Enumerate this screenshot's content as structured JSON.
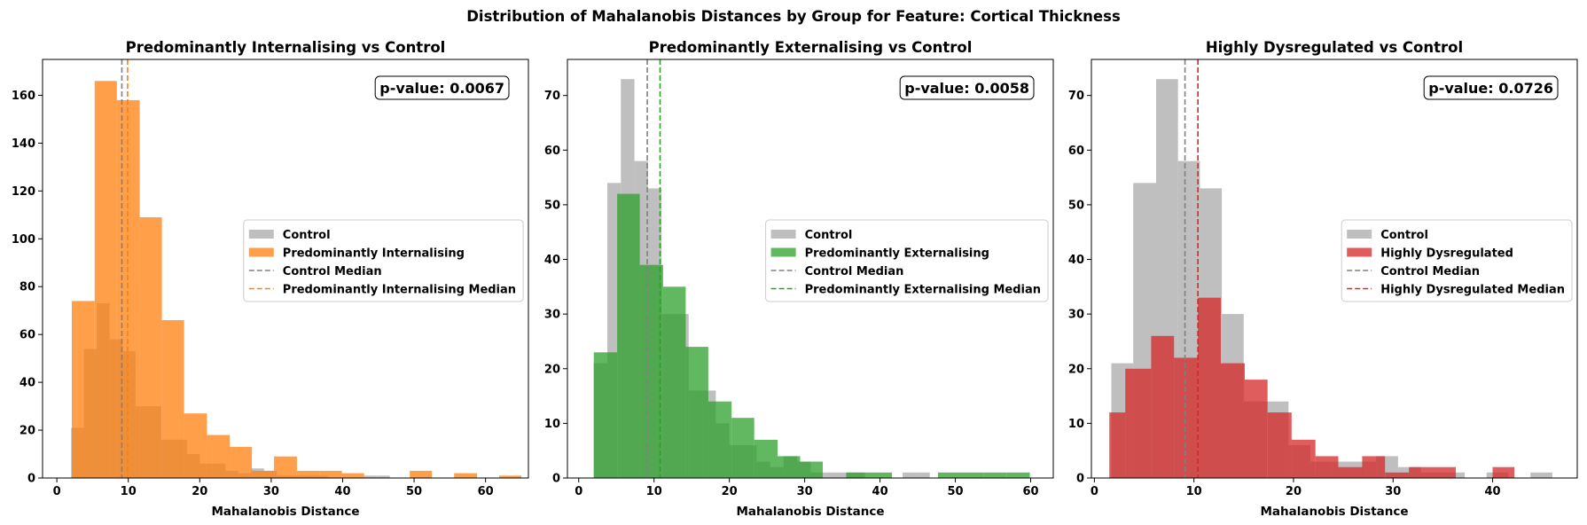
{
  "figure": {
    "suptitle": "Distribution of Mahalanobis Distances by Group for Feature: Cortical Thickness"
  },
  "chart_data": [
    {
      "type": "histogram",
      "title": "Predominantly Internalising vs Control",
      "xlabel": "Mahalanobis Distance",
      "ylabel": "",
      "xlim": [
        -2,
        66
      ],
      "ylim": [
        0,
        175
      ],
      "xticks": [
        0,
        10,
        20,
        30,
        40,
        50,
        60
      ],
      "yticks": [
        0,
        20,
        40,
        60,
        80,
        100,
        120,
        140,
        160
      ],
      "annotation": "p-value: 0.0067",
      "legend_position": "center-right",
      "accent_color": "#ff7f0e",
      "control_color": "#a9a9a9",
      "series": [
        {
          "name": "Control",
          "color": "#a9a9a9",
          "bins": [
            {
              "x0": 2.0,
              "x1": 3.8,
              "y": 21
            },
            {
              "x0": 3.8,
              "x1": 5.6,
              "y": 54
            },
            {
              "x0": 5.6,
              "x1": 7.4,
              "y": 73
            },
            {
              "x0": 7.4,
              "x1": 9.2,
              "y": 58
            },
            {
              "x0": 9.2,
              "x1": 11.0,
              "y": 53
            },
            {
              "x0": 11.0,
              "x1": 12.8,
              "y": 30
            },
            {
              "x0": 12.8,
              "x1": 14.6,
              "y": 30
            },
            {
              "x0": 14.6,
              "x1": 16.4,
              "y": 16
            },
            {
              "x0": 16.4,
              "x1": 18.2,
              "y": 16
            },
            {
              "x0": 18.2,
              "x1": 20.0,
              "y": 10
            },
            {
              "x0": 20.0,
              "x1": 21.8,
              "y": 6
            },
            {
              "x0": 21.8,
              "x1": 23.6,
              "y": 6
            },
            {
              "x0": 23.6,
              "x1": 25.4,
              "y": 3
            },
            {
              "x0": 25.4,
              "x1": 27.2,
              "y": 2
            },
            {
              "x0": 27.2,
              "x1": 29.0,
              "y": 4
            },
            {
              "x0": 29.0,
              "x1": 30.8,
              "y": 3
            },
            {
              "x0": 30.8,
              "x1": 32.6,
              "y": 1
            },
            {
              "x0": 32.6,
              "x1": 34.4,
              "y": 1
            },
            {
              "x0": 34.4,
              "x1": 36.2,
              "y": 1
            },
            {
              "x0": 36.2,
              "x1": 38.0,
              "y": 1
            },
            {
              "x0": 43.0,
              "x1": 44.8,
              "y": 1
            },
            {
              "x0": 44.8,
              "x1": 46.6,
              "y": 1
            }
          ]
        },
        {
          "name": "Predominantly Internalising",
          "color": "#ff7f0e",
          "bins": [
            {
              "x0": 2.1,
              "x1": 5.3,
              "y": 74
            },
            {
              "x0": 5.3,
              "x1": 8.4,
              "y": 166
            },
            {
              "x0": 8.4,
              "x1": 11.6,
              "y": 158
            },
            {
              "x0": 11.6,
              "x1": 14.7,
              "y": 109
            },
            {
              "x0": 14.7,
              "x1": 17.8,
              "y": 66
            },
            {
              "x0": 17.8,
              "x1": 21.0,
              "y": 27
            },
            {
              "x0": 21.0,
              "x1": 24.2,
              "y": 18
            },
            {
              "x0": 24.2,
              "x1": 27.3,
              "y": 13
            },
            {
              "x0": 27.3,
              "x1": 30.4,
              "y": 3
            },
            {
              "x0": 30.4,
              "x1": 33.6,
              "y": 9
            },
            {
              "x0": 33.6,
              "x1": 36.8,
              "y": 3
            },
            {
              "x0": 36.8,
              "x1": 39.9,
              "y": 3
            },
            {
              "x0": 39.9,
              "x1": 43.0,
              "y": 2
            },
            {
              "x0": 49.4,
              "x1": 52.5,
              "y": 3
            },
            {
              "x0": 55.6,
              "x1": 58.8,
              "y": 2
            },
            {
              "x0": 61.9,
              "x1": 65.0,
              "y": 1
            }
          ]
        }
      ],
      "medians": [
        {
          "name": "Control Median",
          "value": 9.1,
          "color": "#808080"
        },
        {
          "name": "Predominantly Internalising Median",
          "value": 9.9,
          "color": "#ff7f0e"
        }
      ]
    },
    {
      "type": "histogram",
      "title": "Predominantly Externalising vs Control",
      "xlabel": "Mahalanobis Distance",
      "ylabel": "",
      "xlim": [
        -1.5,
        63
      ],
      "ylim": [
        0,
        76.6
      ],
      "xticks": [
        0,
        10,
        20,
        30,
        40,
        50,
        60
      ],
      "yticks": [
        0,
        10,
        20,
        30,
        40,
        50,
        60,
        70
      ],
      "annotation": "p-value: 0.0058",
      "legend_position": "center-right",
      "accent_color": "#2ca02c",
      "control_color": "#a9a9a9",
      "series": [
        {
          "name": "Control",
          "color": "#a9a9a9",
          "bins": [
            {
              "x0": 2.0,
              "x1": 3.8,
              "y": 21
            },
            {
              "x0": 3.8,
              "x1": 5.6,
              "y": 54
            },
            {
              "x0": 5.6,
              "x1": 7.4,
              "y": 73
            },
            {
              "x0": 7.4,
              "x1": 9.2,
              "y": 58
            },
            {
              "x0": 9.2,
              "x1": 11.0,
              "y": 53
            },
            {
              "x0": 11.0,
              "x1": 12.8,
              "y": 30
            },
            {
              "x0": 12.8,
              "x1": 14.6,
              "y": 30
            },
            {
              "x0": 14.6,
              "x1": 16.4,
              "y": 16
            },
            {
              "x0": 16.4,
              "x1": 18.2,
              "y": 16
            },
            {
              "x0": 18.2,
              "x1": 20.0,
              "y": 10
            },
            {
              "x0": 20.0,
              "x1": 21.8,
              "y": 6
            },
            {
              "x0": 21.8,
              "x1": 23.6,
              "y": 6
            },
            {
              "x0": 23.6,
              "x1": 25.4,
              "y": 3
            },
            {
              "x0": 25.4,
              "x1": 27.2,
              "y": 2
            },
            {
              "x0": 27.2,
              "x1": 29.0,
              "y": 4
            },
            {
              "x0": 29.0,
              "x1": 30.8,
              "y": 3
            },
            {
              "x0": 30.8,
              "x1": 32.6,
              "y": 1
            },
            {
              "x0": 32.6,
              "x1": 34.4,
              "y": 1
            },
            {
              "x0": 34.4,
              "x1": 36.2,
              "y": 1
            },
            {
              "x0": 36.2,
              "x1": 38.0,
              "y": 1
            },
            {
              "x0": 43.0,
              "x1": 44.8,
              "y": 1
            },
            {
              "x0": 44.8,
              "x1": 46.6,
              "y": 1
            }
          ]
        },
        {
          "name": "Predominantly Externalising",
          "color": "#2ca02c",
          "bins": [
            {
              "x0": 2.0,
              "x1": 5.1,
              "y": 23
            },
            {
              "x0": 5.1,
              "x1": 8.1,
              "y": 52
            },
            {
              "x0": 8.1,
              "x1": 11.2,
              "y": 39
            },
            {
              "x0": 11.2,
              "x1": 14.2,
              "y": 35
            },
            {
              "x0": 14.2,
              "x1": 17.2,
              "y": 24
            },
            {
              "x0": 17.2,
              "x1": 20.3,
              "y": 14
            },
            {
              "x0": 20.3,
              "x1": 23.3,
              "y": 11
            },
            {
              "x0": 23.3,
              "x1": 26.4,
              "y": 7
            },
            {
              "x0": 26.4,
              "x1": 29.4,
              "y": 4
            },
            {
              "x0": 29.4,
              "x1": 32.4,
              "y": 3
            },
            {
              "x0": 35.5,
              "x1": 38.5,
              "y": 1
            },
            {
              "x0": 38.5,
              "x1": 41.6,
              "y": 1
            },
            {
              "x0": 47.7,
              "x1": 50.7,
              "y": 1
            },
            {
              "x0": 50.7,
              "x1": 53.8,
              "y": 1
            },
            {
              "x0": 53.8,
              "x1": 56.8,
              "y": 1
            },
            {
              "x0": 56.8,
              "x1": 59.9,
              "y": 1
            }
          ]
        }
      ],
      "medians": [
        {
          "name": "Control Median",
          "value": 9.1,
          "color": "#808080"
        },
        {
          "name": "Predominantly Externalising Median",
          "value": 10.8,
          "color": "#2ca02c"
        }
      ]
    },
    {
      "type": "histogram",
      "title": "Highly Dysregulated vs Control",
      "xlabel": "Mahalanobis Distance",
      "ylabel": "",
      "xlim": [
        -0.3,
        48.5
      ],
      "ylim": [
        0,
        76.6
      ],
      "xticks": [
        0,
        10,
        20,
        30,
        40
      ],
      "yticks": [
        0,
        10,
        20,
        30,
        40,
        50,
        60,
        70
      ],
      "annotation": "p-value: 0.0726",
      "legend_position": "center-right",
      "accent_color": "#d62728",
      "control_color": "#a9a9a9",
      "series": [
        {
          "name": "Control",
          "color": "#a9a9a9",
          "bins": [
            {
              "x0": 1.7,
              "x1": 3.9,
              "y": 21
            },
            {
              "x0": 3.9,
              "x1": 6.2,
              "y": 54
            },
            {
              "x0": 6.2,
              "x1": 8.4,
              "y": 73
            },
            {
              "x0": 8.4,
              "x1": 10.6,
              "y": 58
            },
            {
              "x0": 10.6,
              "x1": 12.8,
              "y": 53
            },
            {
              "x0": 12.8,
              "x1": 15.0,
              "y": 30
            },
            {
              "x0": 15.0,
              "x1": 17.2,
              "y": 14
            },
            {
              "x0": 17.2,
              "x1": 19.5,
              "y": 14
            },
            {
              "x0": 19.5,
              "x1": 21.7,
              "y": 6
            },
            {
              "x0": 21.7,
              "x1": 23.9,
              "y": 3
            },
            {
              "x0": 23.9,
              "x1": 26.1,
              "y": 3
            },
            {
              "x0": 26.1,
              "x1": 28.3,
              "y": 3
            },
            {
              "x0": 28.3,
              "x1": 30.5,
              "y": 4
            },
            {
              "x0": 30.5,
              "x1": 32.8,
              "y": 2
            },
            {
              "x0": 32.8,
              "x1": 35.0,
              "y": 1
            },
            {
              "x0": 35.0,
              "x1": 37.2,
              "y": 1
            },
            {
              "x0": 39.4,
              "x1": 41.6,
              "y": 1
            },
            {
              "x0": 43.8,
              "x1": 46.0,
              "y": 1
            }
          ]
        },
        {
          "name": "Highly Dysregulated",
          "color": "#d62728",
          "bins": [
            {
              "x0": 1.5,
              "x1": 3.1,
              "y": 12
            },
            {
              "x0": 3.1,
              "x1": 5.7,
              "y": 20
            },
            {
              "x0": 5.7,
              "x1": 8.0,
              "y": 26
            },
            {
              "x0": 8.0,
              "x1": 10.4,
              "y": 22
            },
            {
              "x0": 10.4,
              "x1": 12.7,
              "y": 33
            },
            {
              "x0": 12.7,
              "x1": 15.1,
              "y": 21
            },
            {
              "x0": 15.1,
              "x1": 17.4,
              "y": 18
            },
            {
              "x0": 17.4,
              "x1": 19.8,
              "y": 12
            },
            {
              "x0": 19.8,
              "x1": 22.2,
              "y": 7
            },
            {
              "x0": 22.2,
              "x1": 24.5,
              "y": 4
            },
            {
              "x0": 24.5,
              "x1": 26.9,
              "y": 2
            },
            {
              "x0": 26.9,
              "x1": 29.2,
              "y": 4
            },
            {
              "x0": 29.2,
              "x1": 31.6,
              "y": 1
            },
            {
              "x0": 31.6,
              "x1": 33.9,
              "y": 2
            },
            {
              "x0": 33.9,
              "x1": 36.3,
              "y": 2
            },
            {
              "x0": 40.0,
              "x1": 42.2,
              "y": 2
            }
          ]
        }
      ],
      "medians": [
        {
          "name": "Control Median",
          "value": 9.1,
          "color": "#808080"
        },
        {
          "name": "Highly Dysregulated Median",
          "value": 10.4,
          "color": "#d62728"
        }
      ]
    }
  ]
}
